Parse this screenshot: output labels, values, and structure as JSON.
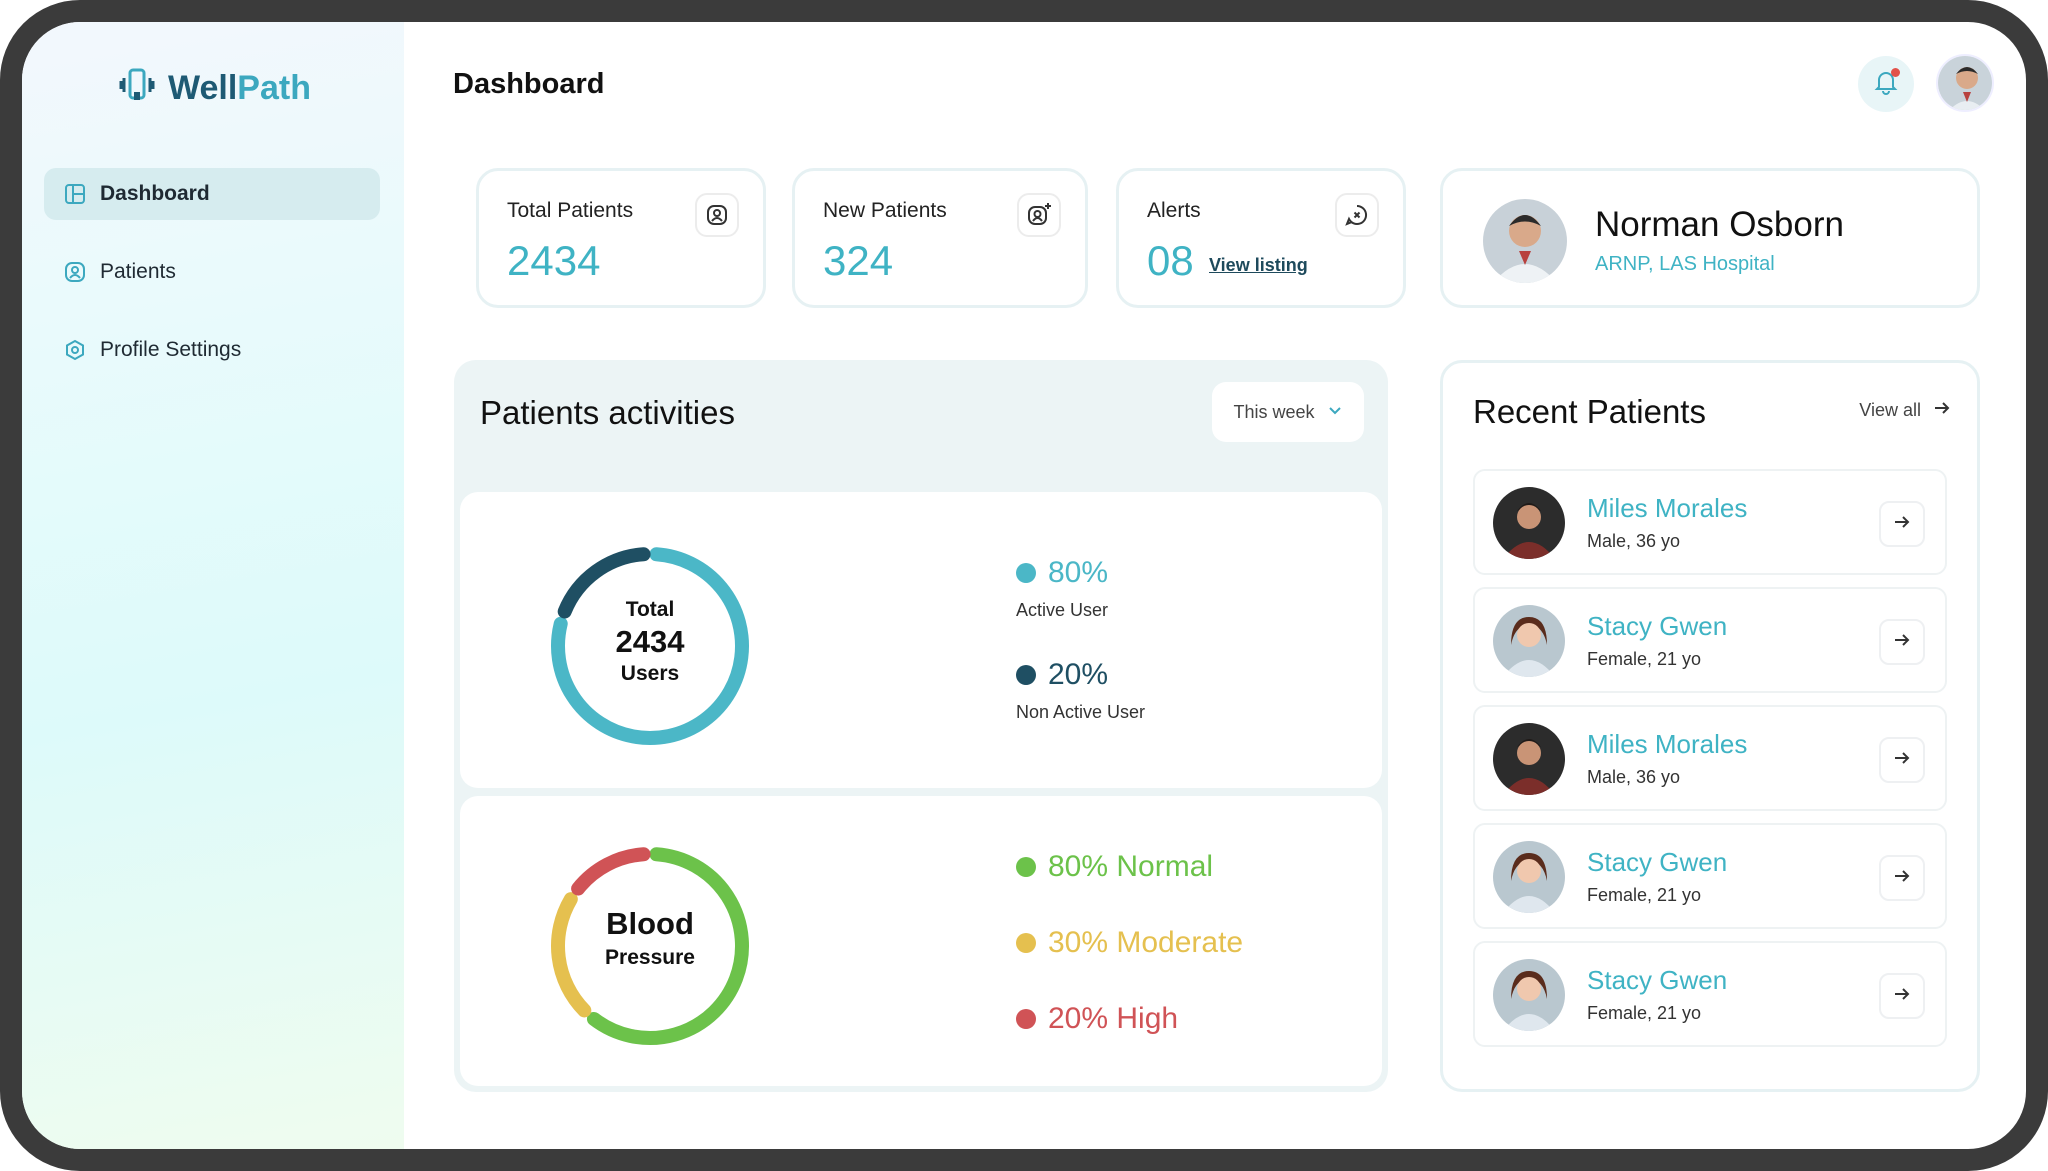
{
  "app": {
    "name_part1": "Well",
    "name_part2": "Path",
    "colors": {
      "brand_dark": "#1e5a74",
      "accent": "#3fb3c4"
    }
  },
  "sidebar": {
    "items": [
      {
        "label": "Dashboard",
        "icon": "grid-icon",
        "active": true
      },
      {
        "label": "Patients",
        "icon": "user-icon",
        "active": false
      },
      {
        "label": "Profile Settings",
        "icon": "gear-icon",
        "active": false
      }
    ]
  },
  "header": {
    "title": "Dashboard",
    "icons": {
      "notifications": "bell-icon",
      "profile": "avatar"
    }
  },
  "stats": {
    "total_patients": {
      "label": "Total Patients",
      "value": "2434",
      "icon": "user-badge-icon"
    },
    "new_patients": {
      "label": "New Patients",
      "value": "324",
      "icon": "user-add-icon"
    },
    "alerts": {
      "label": "Alerts",
      "value": "08",
      "link": "View listing",
      "icon": "message-alert-icon"
    }
  },
  "doctor": {
    "name": "Norman Osborn",
    "subtitle": "ARNP, LAS Hospital"
  },
  "activities": {
    "title": "Patients activities",
    "period": "This week"
  },
  "users_chart": {
    "center_line1": "Total",
    "center_value": "2434",
    "center_line2": "Users",
    "legend": [
      {
        "pct": "80%",
        "label": "Active User",
        "color": "#4bb7c7"
      },
      {
        "pct": "20%",
        "label": "Non Active User",
        "color": "#1f4f63"
      }
    ]
  },
  "bp_chart": {
    "center_line1": "Blood",
    "center_line2": "Pressure",
    "legend": [
      {
        "label": "80% Normal",
        "color": "#6cc24a"
      },
      {
        "label": "30% Moderate",
        "color": "#e5c04f"
      },
      {
        "label": "20% High",
        "color": "#d05356"
      }
    ]
  },
  "chart_data": [
    {
      "type": "pie",
      "categories": [
        "Active User",
        "Non Active User"
      ],
      "values": [
        80,
        20
      ]
    },
    {
      "type": "pie",
      "categories": [
        "Normal",
        "Moderate",
        "High"
      ],
      "values": [
        80,
        30,
        20
      ]
    }
  ],
  "recent": {
    "title": "Recent Patients",
    "view_all": "View all",
    "patients": [
      {
        "name": "Miles Morales",
        "info": "Male, 36 yo"
      },
      {
        "name": "Stacy Gwen",
        "info": "Female, 21 yo"
      },
      {
        "name": "Miles Morales",
        "info": "Male, 36 yo"
      },
      {
        "name": "Stacy Gwen",
        "info": "Female, 21 yo"
      },
      {
        "name": "Stacy Gwen",
        "info": "Female, 21 yo"
      }
    ]
  }
}
